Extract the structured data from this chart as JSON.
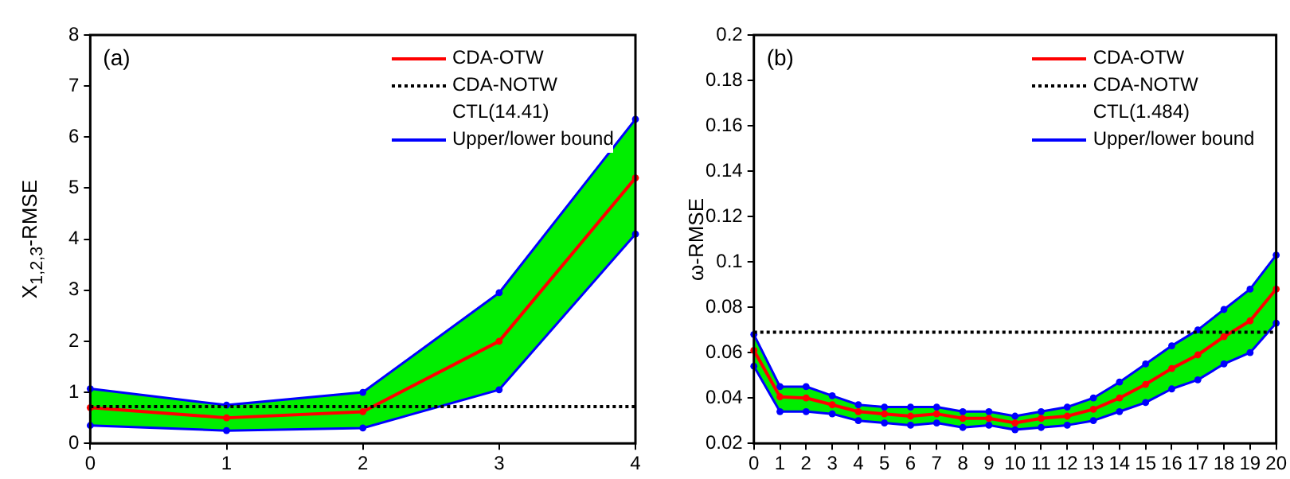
{
  "chart_data": [
    {
      "type": "line",
      "ylabel": "X$_{1,2,3}$-RMSE",
      "annotations": [
        "(a)",
        "CTL(14.41)"
      ],
      "x": [
        0,
        1,
        2,
        3,
        4
      ],
      "xlim": [
        0,
        4
      ],
      "xticks": [
        0,
        1,
        2,
        3,
        4
      ],
      "ylim": [
        0,
        8
      ],
      "yticks": [
        0,
        1,
        2,
        3,
        4,
        5,
        6,
        7,
        8
      ],
      "series": [
        {
          "name": "CDA-OTW",
          "color": "#ff0000",
          "values": [
            0.7,
            0.5,
            0.62,
            2.0,
            5.2
          ],
          "lower": [
            0.35,
            0.25,
            0.3,
            1.05,
            4.1
          ],
          "upper": [
            1.07,
            0.75,
            1.0,
            2.95,
            6.35
          ]
        },
        {
          "name": "Upper/lower bound",
          "color": "#0000ff",
          "values": [
            1.07,
            0.75,
            1.0,
            2.95,
            6.35
          ]
        },
        {
          "color": "#0000ff",
          "values": [
            0.35,
            0.25,
            0.3,
            1.05,
            4.1
          ]
        }
      ],
      "ref_lines": [
        {
          "axis": "y",
          "value": 0.72,
          "label": "CDA-NOTW",
          "color": "#000000",
          "line_style": "dotted"
        }
      ],
      "marker": "circle",
      "grid": false,
      "legend": "top right"
    },
    {
      "type": "line",
      "ylabel": "ω-RMSE",
      "annotations": [
        "(b)",
        "CTL(1.484)"
      ],
      "x": [
        0,
        1,
        2,
        3,
        4,
        5,
        6,
        7,
        8,
        9,
        10,
        11,
        12,
        13,
        14,
        15,
        16,
        17,
        18,
        19,
        20
      ],
      "xlim": [
        0,
        20
      ],
      "xticks": [
        0,
        1,
        2,
        3,
        4,
        5,
        6,
        7,
        8,
        9,
        10,
        11,
        12,
        13,
        14,
        15,
        16,
        17,
        18,
        19,
        20
      ],
      "ylim": [
        0.02,
        0.2
      ],
      "yticks": [
        0.02,
        0.04,
        0.06,
        0.08,
        0.1,
        0.12,
        0.14,
        0.16,
        0.18,
        0.2
      ],
      "series": [
        {
          "name": "CDA-OTW",
          "color": "#ff0000",
          "values": [
            0.061,
            0.0405,
            0.04,
            0.037,
            0.034,
            0.033,
            0.032,
            0.033,
            0.031,
            0.031,
            0.029,
            0.031,
            0.032,
            0.035,
            0.04,
            0.046,
            0.053,
            0.059,
            0.067,
            0.074,
            0.088
          ],
          "lower": [
            0.054,
            0.034,
            0.034,
            0.033,
            0.03,
            0.029,
            0.028,
            0.029,
            0.027,
            0.028,
            0.026,
            0.027,
            0.028,
            0.03,
            0.034,
            0.038,
            0.044,
            0.048,
            0.055,
            0.06,
            0.073
          ],
          "upper": [
            0.068,
            0.045,
            0.045,
            0.041,
            0.037,
            0.036,
            0.036,
            0.036,
            0.034,
            0.034,
            0.032,
            0.034,
            0.036,
            0.04,
            0.047,
            0.055,
            0.063,
            0.07,
            0.079,
            0.088,
            0.103
          ]
        },
        {
          "name": "Upper/lower bound",
          "color": "#0000ff",
          "values": [
            0.068,
            0.045,
            0.045,
            0.041,
            0.037,
            0.036,
            0.036,
            0.036,
            0.034,
            0.034,
            0.032,
            0.034,
            0.036,
            0.04,
            0.047,
            0.055,
            0.063,
            0.07,
            0.079,
            0.088,
            0.103
          ]
        },
        {
          "color": "#0000ff",
          "values": [
            0.054,
            0.034,
            0.034,
            0.033,
            0.03,
            0.029,
            0.028,
            0.029,
            0.027,
            0.028,
            0.026,
            0.027,
            0.028,
            0.03,
            0.034,
            0.038,
            0.044,
            0.048,
            0.055,
            0.06,
            0.073
          ]
        }
      ],
      "ref_lines": [
        {
          "axis": "y",
          "value": 0.069,
          "label": "CDA-NOTW",
          "color": "#000000",
          "line_style": "dotted"
        }
      ],
      "marker": "circle",
      "grid": false,
      "legend": "top right"
    }
  ]
}
